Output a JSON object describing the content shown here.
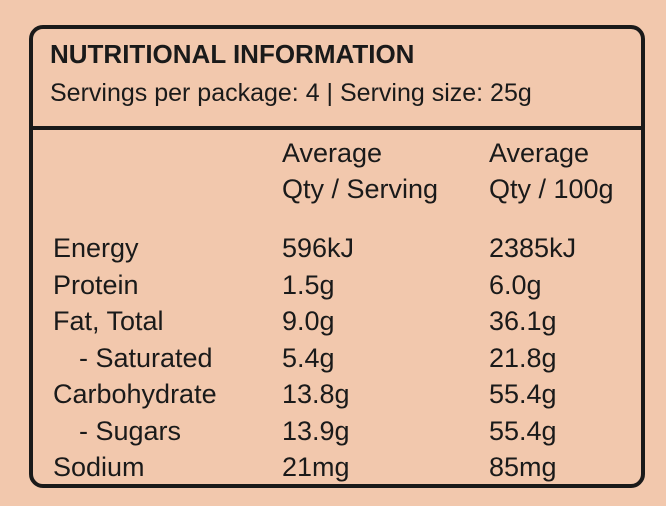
{
  "panel": {
    "title": "NUTRITIONAL INFORMATION",
    "subtitle": "Servings per package: 4 | Serving size: 25g"
  },
  "columns": [
    {
      "line1": "Average",
      "line2": "Qty / Serving"
    },
    {
      "line1": "Average",
      "line2": "Qty / 100g"
    }
  ],
  "rows": [
    {
      "label": "Energy",
      "per_serving": "596kJ",
      "per_100g": "2385kJ"
    },
    {
      "label": "Protein",
      "per_serving": "1.5g",
      "per_100g": "6.0g"
    },
    {
      "label": "Fat, Total",
      "per_serving": "9.0g",
      "per_100g": "36.1g"
    },
    {
      "label": "- Saturated",
      "per_serving": "5.4g",
      "per_100g": "21.8g"
    },
    {
      "label": "Carbohydrate",
      "per_serving": "13.8g",
      "per_100g": "55.4g"
    },
    {
      "label": "- Sugars",
      "per_serving": "13.9g",
      "per_100g": "55.4g"
    },
    {
      "label": "Sodium",
      "per_serving": "21mg",
      "per_100g": "85mg"
    }
  ],
  "colors": {
    "background": "#f2c8ad",
    "ink": "#1a1a1a"
  }
}
